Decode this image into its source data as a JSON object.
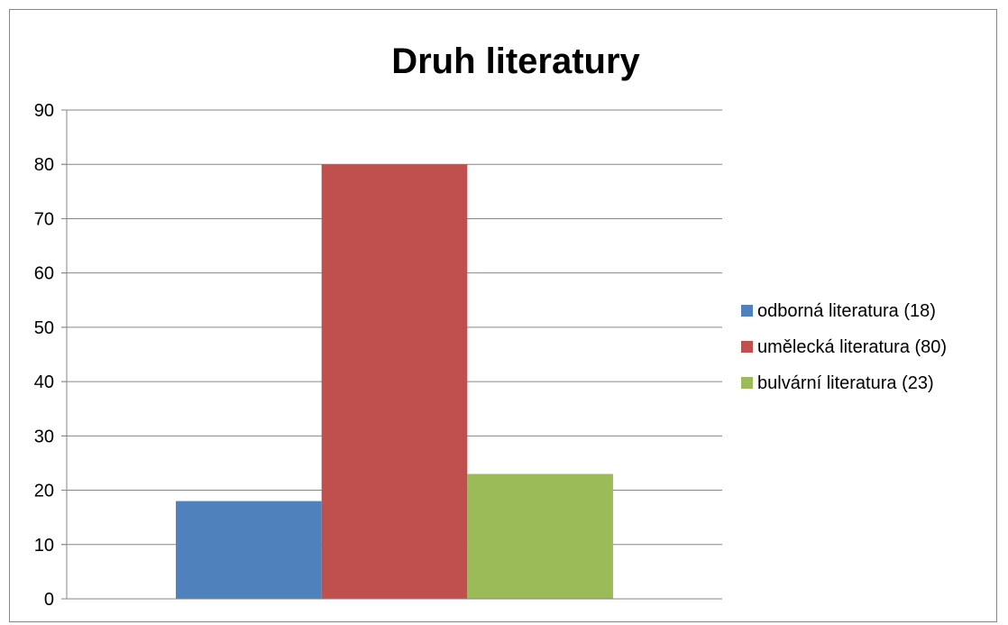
{
  "chart_data": {
    "type": "bar",
    "title": "Druh literatury",
    "xlabel": "",
    "ylabel": "",
    "ylim": [
      0,
      90
    ],
    "yticks": [
      0,
      10,
      20,
      30,
      40,
      50,
      60,
      70,
      80,
      90
    ],
    "grid": true,
    "legend_position": "right",
    "series": [
      {
        "name": "odborná literatura (18)",
        "values": [
          18
        ],
        "color": "#4F81BD"
      },
      {
        "name": "umělecká literatura (80)",
        "values": [
          80
        ],
        "color": "#C0504D"
      },
      {
        "name": "bulvární literatura (23)",
        "values": [
          23
        ],
        "color": "#9BBB59"
      }
    ]
  }
}
